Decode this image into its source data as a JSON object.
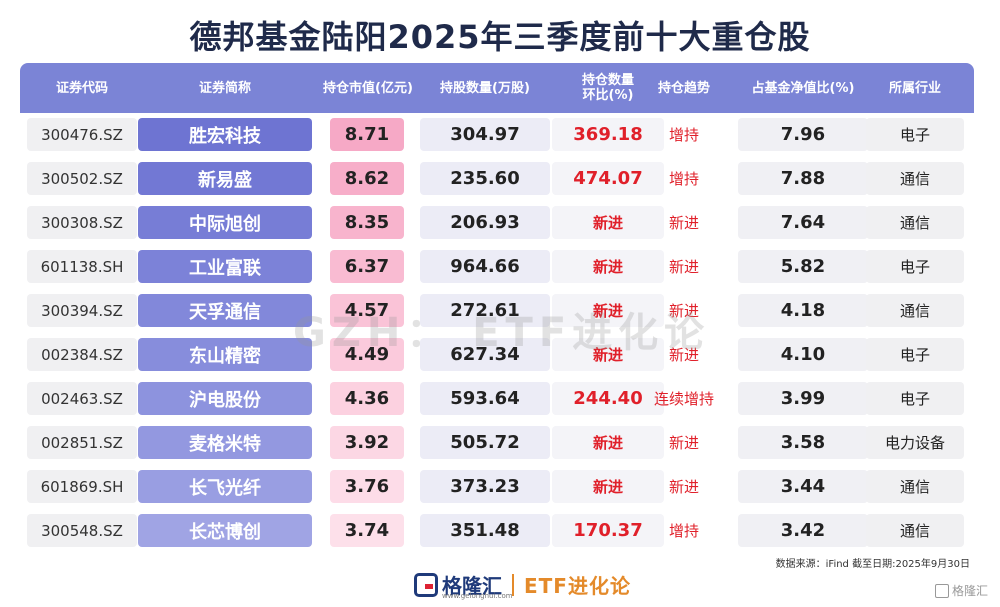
{
  "title": "德邦基金陆阳2025年三季度前十大重仓股",
  "columns": [
    "证券代码",
    "证券简称",
    "持仓市值(亿元)",
    "持股数量(万股)",
    "持仓数量\n环比(%)",
    "持仓趋势",
    "占基金净值比(%)",
    "所属行业"
  ],
  "rows": [
    {
      "code": "300476.SZ",
      "name": "胜宏科技",
      "mv": "8.71",
      "qty": "304.97",
      "chg": "369.18",
      "trend": "增持",
      "pct": "7.96",
      "ind": "电子"
    },
    {
      "code": "300502.SZ",
      "name": "新易盛",
      "mv": "8.62",
      "qty": "235.60",
      "chg": "474.07",
      "trend": "增持",
      "pct": "7.88",
      "ind": "通信"
    },
    {
      "code": "300308.SZ",
      "name": "中际旭创",
      "mv": "8.35",
      "qty": "206.93",
      "chg": "新进",
      "trend": "新进",
      "pct": "7.64",
      "ind": "通信"
    },
    {
      "code": "601138.SH",
      "name": "工业富联",
      "mv": "6.37",
      "qty": "964.66",
      "chg": "新进",
      "trend": "新进",
      "pct": "5.82",
      "ind": "电子"
    },
    {
      "code": "300394.SZ",
      "name": "天孚通信",
      "mv": "4.57",
      "qty": "272.61",
      "chg": "新进",
      "trend": "新进",
      "pct": "4.18",
      "ind": "通信"
    },
    {
      "code": "002384.SZ",
      "name": "东山精密",
      "mv": "4.49",
      "qty": "627.34",
      "chg": "新进",
      "trend": "新进",
      "pct": "4.10",
      "ind": "电子"
    },
    {
      "code": "002463.SZ",
      "name": "沪电股份",
      "mv": "4.36",
      "qty": "593.64",
      "chg": "244.40",
      "trend": "连续增持",
      "pct": "3.99",
      "ind": "电子"
    },
    {
      "code": "002851.SZ",
      "name": "麦格米特",
      "mv": "3.92",
      "qty": "505.72",
      "chg": "新进",
      "trend": "新进",
      "pct": "3.58",
      "ind": "电力设备"
    },
    {
      "code": "601869.SH",
      "name": "长飞光纤",
      "mv": "3.76",
      "qty": "373.23",
      "chg": "新进",
      "trend": "新进",
      "pct": "3.44",
      "ind": "通信"
    },
    {
      "code": "300548.SZ",
      "name": "长芯博创",
      "mv": "3.74",
      "qty": "351.48",
      "chg": "170.37",
      "trend": "增持",
      "pct": "3.42",
      "ind": "通信"
    }
  ],
  "colors": {
    "header_bg": "#7b84d6",
    "name_bg": [
      "#6e74d2",
      "#7278d4",
      "#777dd6",
      "#7c82d8",
      "#8288da",
      "#878ddc",
      "#8d93de",
      "#9398e0",
      "#999ee2",
      "#a0a4e4"
    ],
    "mv_bg": [
      "#f6a9c6",
      "#f7aec9",
      "#f8b4cd",
      "#f9bbd2",
      "#fac3d7",
      "#fbcadc",
      "#fcd1e0",
      "#fcd7e4",
      "#fddce8",
      "#fde0ea"
    ],
    "red": "#e0202a"
  },
  "watermark": "GZH： ETF进化论",
  "source": "数据来源：iFind 截至日期:2025年9月30日",
  "footer": {
    "brand": "格隆汇",
    "brand_sub": "www.gelonghui.com",
    "etf": "ETF进化论",
    "corner": "格隆汇"
  }
}
